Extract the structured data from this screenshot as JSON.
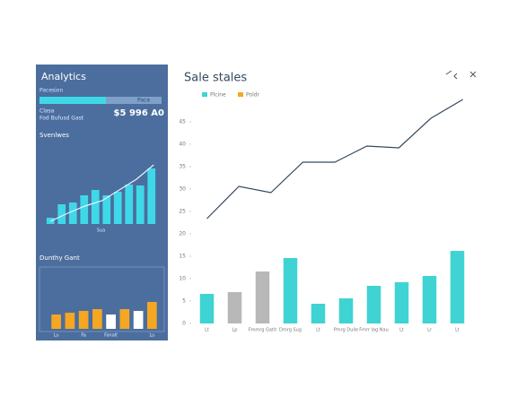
{
  "sidebar": {
    "title": "Analytics",
    "progress_label": "Pacesion",
    "progress_value": "Paca",
    "stat_label": "Clasa",
    "stat_sub": "Fod Bufusd Gast",
    "stat_value": "$5 996 A0",
    "section1": "Svenlwes",
    "section2": "Dunthy Gant",
    "mini_bar": {
      "type": "bar",
      "values": [
        7,
        22,
        24,
        32,
        38,
        32,
        36,
        44,
        43,
        62
      ],
      "line_values": [
        3,
        12,
        20,
        26,
        38,
        50,
        66
      ],
      "ylim": [
        0,
        70
      ],
      "color": "#3fd8e8",
      "line_color": "#e8f4ff",
      "caption": "Sua"
    },
    "mini_bar2": {
      "type": "bar",
      "categories": [
        "Lu",
        null,
        "Fa",
        null,
        "Fanalt",
        null,
        null,
        "Lu"
      ],
      "values": [
        8,
        9,
        10,
        11,
        8,
        11,
        10,
        15
      ],
      "colors": [
        "#f5a623",
        "#f5a623",
        "#f5a623",
        "#f5a623",
        "#ffffff",
        "#f5a623",
        "#ffffff",
        "#f5a623"
      ],
      "ylim": [
        0,
        30
      ]
    }
  },
  "chart_data": {
    "type": "bar",
    "title": "Sale stales",
    "legend": [
      {
        "label": "Plcine",
        "color": "#3fd3d3"
      },
      {
        "label": "Poldr",
        "color": "#f5a623"
      }
    ],
    "categories": [
      "Lt",
      "Lp",
      "Fmmrg Gatit",
      "Dmrg Sug",
      "Lt",
      "Pmrg Dulle",
      "Fmrr lag Nau",
      "Lt",
      "Lr",
      "Lt"
    ],
    "values": [
      6.6,
      7,
      11.6,
      14.6,
      4.4,
      5.6,
      8.4,
      9.2,
      10.6,
      16.2
    ],
    "colors": [
      "#3fd3d3",
      "#b8b8b8",
      "#b8b8b8",
      "#3fd3d3",
      "#3fd3d3",
      "#3fd3d3",
      "#3fd3d3",
      "#3fd3d3",
      "#3fd3d3",
      "#3fd3d3"
    ],
    "line_values": [
      23.4,
      30.6,
      29.2,
      36,
      36,
      39.6,
      39.2,
      45.8,
      50
    ],
    "line_color": "#34495e",
    "ylim": [
      0,
      50
    ],
    "yticks": [
      0,
      5,
      10,
      15,
      20,
      25,
      30,
      35,
      40,
      45
    ]
  }
}
